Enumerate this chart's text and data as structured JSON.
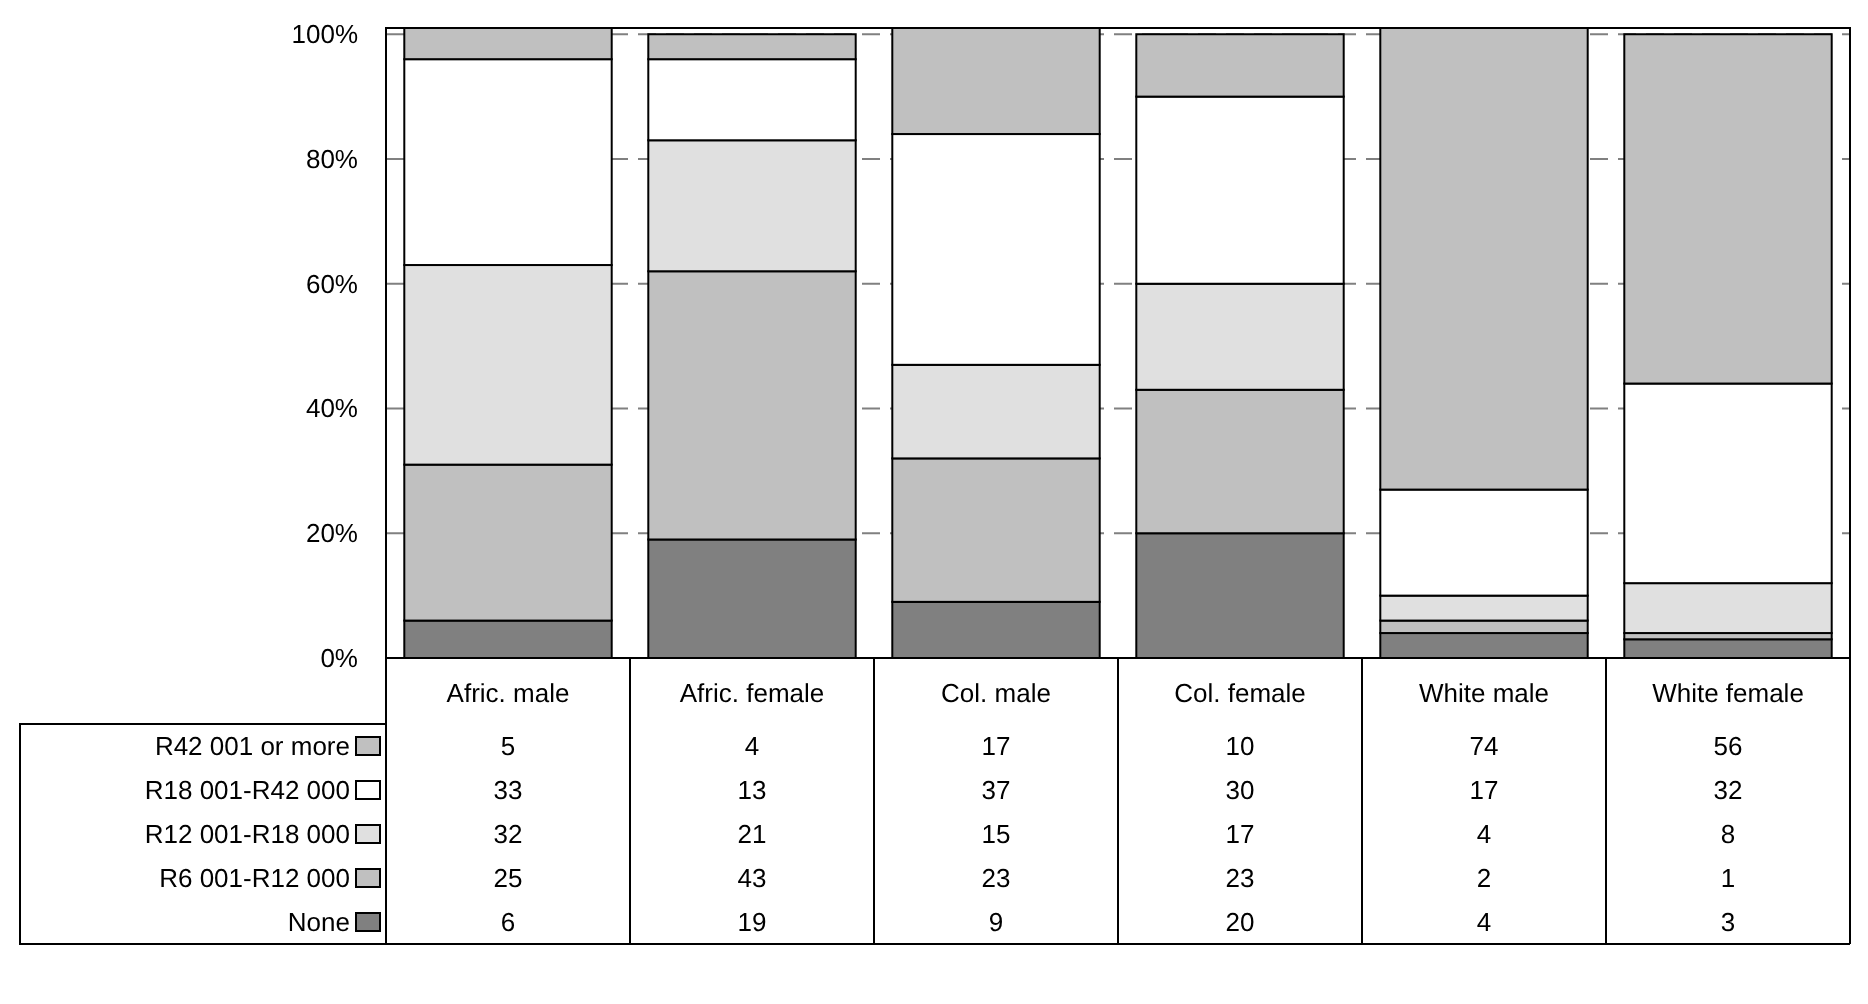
{
  "chart_data": {
    "type": "bar",
    "stacked": true,
    "categories": [
      "Afric. male",
      "Afric. female",
      "Col. male",
      "Col. female",
      "White male",
      "White female"
    ],
    "series": [
      {
        "name": "None",
        "color": "#808080",
        "values": [
          6,
          19,
          9,
          20,
          4,
          3
        ]
      },
      {
        "name": "R6 001-R12 000",
        "color": "#c0c0c0",
        "values": [
          25,
          43,
          23,
          23,
          2,
          1
        ]
      },
      {
        "name": "R12 001-R18 000",
        "color": "#e0e0e0",
        "values": [
          32,
          21,
          15,
          17,
          4,
          8
        ]
      },
      {
        "name": "R18 001-R42 000",
        "color": "#ffffff",
        "values": [
          33,
          13,
          37,
          30,
          17,
          32
        ]
      },
      {
        "name": "R42 001 or more",
        "color": "#c0c0c0",
        "values": [
          5,
          4,
          17,
          10,
          74,
          56
        ]
      }
    ],
    "ylim": [
      0,
      101
    ],
    "yticks": [
      {
        "value": 0,
        "label": "0%"
      },
      {
        "value": 20,
        "label": "20%"
      },
      {
        "value": 40,
        "label": "40%"
      },
      {
        "value": 60,
        "label": "60%"
      },
      {
        "value": 80,
        "label": "80%"
      },
      {
        "value": 100,
        "label": "100%"
      }
    ],
    "grid": "y",
    "legend": "bottom left",
    "data_labels": true
  }
}
